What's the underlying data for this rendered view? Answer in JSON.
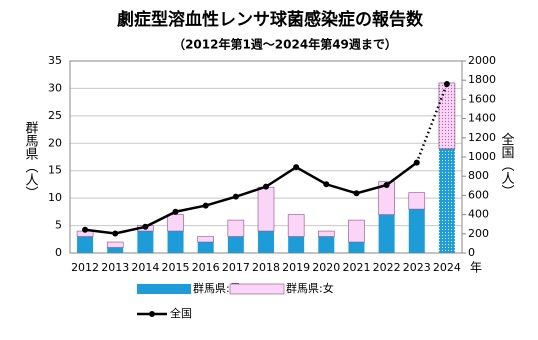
{
  "chart_data": {
    "type": "bar_line",
    "title": "劇症型溶血性レンサ球菌感染症の報告数",
    "subtitle": "（2012年第1週〜2024年第49週まで）",
    "y_label": "群馬県（人）",
    "y2_label": "全国（人）",
    "x_unit": "年",
    "categories": [
      "2012",
      "2013",
      "2014",
      "2015",
      "2016",
      "2017",
      "2018",
      "2019",
      "2020",
      "2021",
      "2022",
      "2023",
      "2024"
    ],
    "series": [
      {
        "name": "群馬県:男",
        "color": "#1e9cd8",
        "values": [
          3,
          1,
          4,
          4,
          2,
          3,
          4,
          3,
          3,
          2,
          7,
          8,
          19
        ]
      },
      {
        "name": "群馬県:女",
        "color": "#fbd5f7",
        "values": [
          1,
          1,
          1,
          3,
          1,
          3,
          8,
          4,
          1,
          4,
          6,
          3,
          12
        ]
      },
      {
        "name": "全国",
        "color": "#000000",
        "axis": "y2",
        "values": [
          242,
          203,
          273,
          430,
          494,
          587,
          691,
          894,
          716,
          622,
          708,
          941,
          1760
        ]
      }
    ],
    "ylim": [
      0,
      35
    ],
    "yticks": [
      0,
      5,
      10,
      15,
      20,
      25,
      30,
      35
    ],
    "y2lim": [
      0,
      2000
    ],
    "y2ticks": [
      0,
      200,
      400,
      600,
      800,
      1000,
      1200,
      1400,
      1600,
      1800,
      2000
    ],
    "grid": true
  }
}
